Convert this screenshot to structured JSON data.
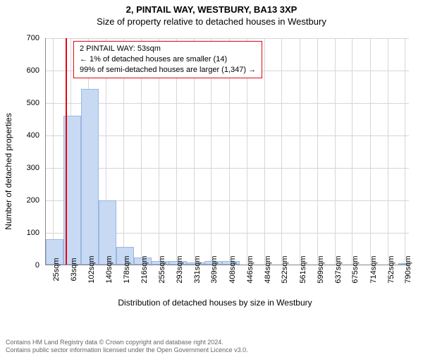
{
  "title_main": "2, PINTAIL WAY, WESTBURY, BA13 3XP",
  "title_sub": "Size of property relative to detached houses in Westbury",
  "chart": {
    "type": "histogram",
    "ylabel": "Number of detached properties",
    "xlabel": "Distribution of detached houses by size in Westbury",
    "ylim": [
      0,
      700
    ],
    "ytick_step": 100,
    "yticks": [
      0,
      100,
      200,
      300,
      400,
      500,
      600,
      700
    ],
    "xticks": [
      "25sqm",
      "63sqm",
      "102sqm",
      "140sqm",
      "178sqm",
      "216sqm",
      "255sqm",
      "293sqm",
      "331sqm",
      "369sqm",
      "408sqm",
      "446sqm",
      "484sqm",
      "522sqm",
      "561sqm",
      "599sqm",
      "637sqm",
      "675sqm",
      "714sqm",
      "752sqm",
      "790sqm"
    ],
    "xtick_values": [
      25,
      63,
      102,
      140,
      178,
      216,
      255,
      293,
      331,
      369,
      408,
      446,
      484,
      522,
      561,
      599,
      637,
      675,
      714,
      752,
      790
    ],
    "x_range": [
      10,
      800
    ],
    "bars": [
      {
        "x0": 10,
        "x1": 48,
        "value": 78
      },
      {
        "x0": 48,
        "x1": 86,
        "value": 458
      },
      {
        "x0": 86,
        "x1": 125,
        "value": 542
      },
      {
        "x0": 125,
        "x1": 163,
        "value": 198
      },
      {
        "x0": 163,
        "x1": 201,
        "value": 55
      },
      {
        "x0": 201,
        "x1": 240,
        "value": 22
      },
      {
        "x0": 240,
        "x1": 278,
        "value": 10
      },
      {
        "x0": 278,
        "x1": 316,
        "value": 10
      },
      {
        "x0": 316,
        "x1": 355,
        "value": 6
      },
      {
        "x0": 355,
        "x1": 393,
        "value": 10
      },
      {
        "x0": 393,
        "x1": 431,
        "value": 10
      },
      {
        "x0": 431,
        "x1": 470,
        "value": 0
      },
      {
        "x0": 470,
        "x1": 508,
        "value": 0
      },
      {
        "x0": 508,
        "x1": 546,
        "value": 0
      },
      {
        "x0": 546,
        "x1": 585,
        "value": 0
      },
      {
        "x0": 585,
        "x1": 623,
        "value": 0
      },
      {
        "x0": 623,
        "x1": 661,
        "value": 0
      },
      {
        "x0": 661,
        "x1": 700,
        "value": 0
      },
      {
        "x0": 700,
        "x1": 738,
        "value": 0
      },
      {
        "x0": 738,
        "x1": 776,
        "value": 0
      },
      {
        "x0": 776,
        "x1": 800,
        "value": 2
      }
    ],
    "bar_fill": "#c8d9f4",
    "bar_stroke": "#9cb6e0",
    "grid_color": "#d6d6d6",
    "axis_color": "#888888",
    "background_color": "#ffffff",
    "marker": {
      "x": 53,
      "color": "#e30613"
    },
    "info_box": {
      "border_color": "#e30613",
      "lines": [
        "2 PINTAIL WAY: 53sqm",
        "← 1% of detached houses are smaller (14)",
        "99% of semi-detached houses are larger (1,347) →"
      ]
    }
  },
  "footer": {
    "line1": "Contains HM Land Registry data © Crown copyright and database right 2024.",
    "line2": "Contains public sector information licensed under the Open Government Licence v3.0."
  },
  "fonts": {
    "title_fontsize": 13,
    "label_fontsize": 12,
    "tick_fontsize": 11,
    "info_fontsize": 11,
    "footer_fontsize": 9
  }
}
